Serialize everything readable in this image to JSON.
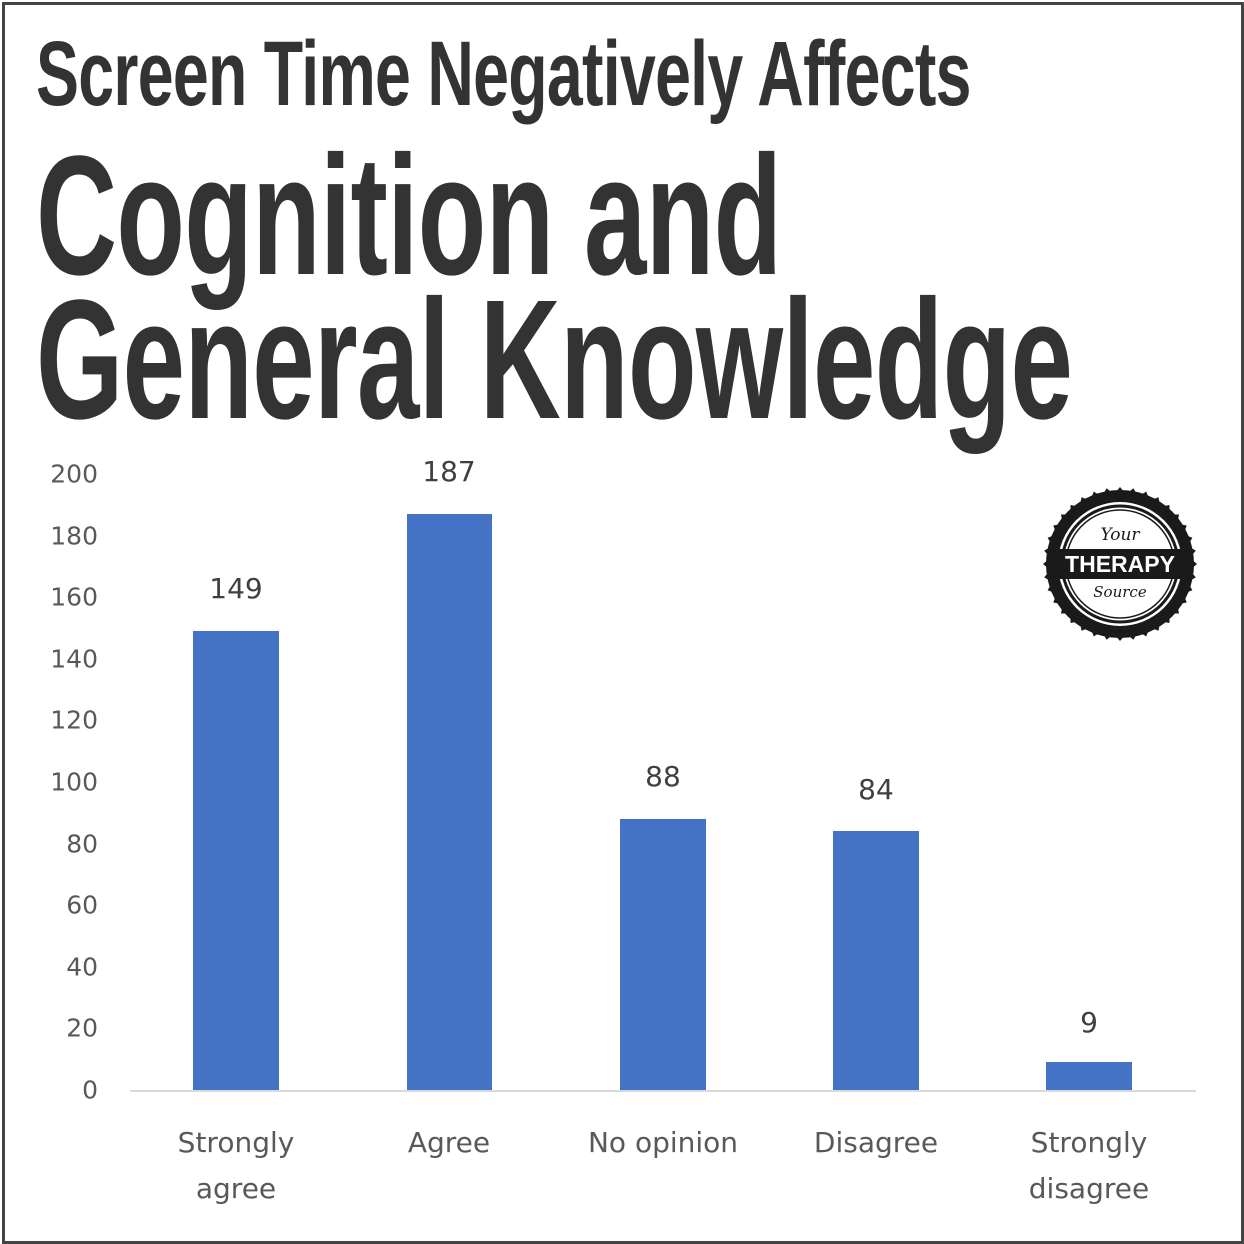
{
  "title": {
    "line1": "Screen Time Negatively Affects",
    "line2": "Cognition and",
    "line3": "General Knowledge"
  },
  "logo": {
    "top": "Your",
    "middle": "THERAPY",
    "bottom": "Source"
  },
  "colors": {
    "bar": "#4472c4",
    "title": "#333333",
    "axis": "#d9d9d9"
  },
  "chart_data": {
    "type": "bar",
    "title": "Screen Time Negatively Affects Cognition and General Knowledge",
    "categories": [
      "Strongly agree",
      "Agree",
      "No opinion",
      "Disagree",
      "Strongly disagree"
    ],
    "values": [
      149,
      187,
      88,
      84,
      9
    ],
    "xlabel": "",
    "ylabel": "",
    "ylim": [
      0,
      200
    ],
    "yticks": [
      0,
      20,
      40,
      60,
      80,
      100,
      120,
      140,
      160,
      180,
      200
    ],
    "grid": false,
    "data_labels": true,
    "legend": null
  },
  "axis": {
    "yticks": [
      "200",
      "180",
      "160",
      "140",
      "120",
      "100",
      "80",
      "60",
      "40",
      "20",
      "0"
    ]
  },
  "bars": [
    {
      "label": "Strongly\nagree",
      "value": "149"
    },
    {
      "label": "Agree",
      "value": "187"
    },
    {
      "label": "No opinion",
      "value": "88"
    },
    {
      "label": "Disagree",
      "value": "84"
    },
    {
      "label": "Strongly\ndisagree",
      "value": "9"
    }
  ]
}
